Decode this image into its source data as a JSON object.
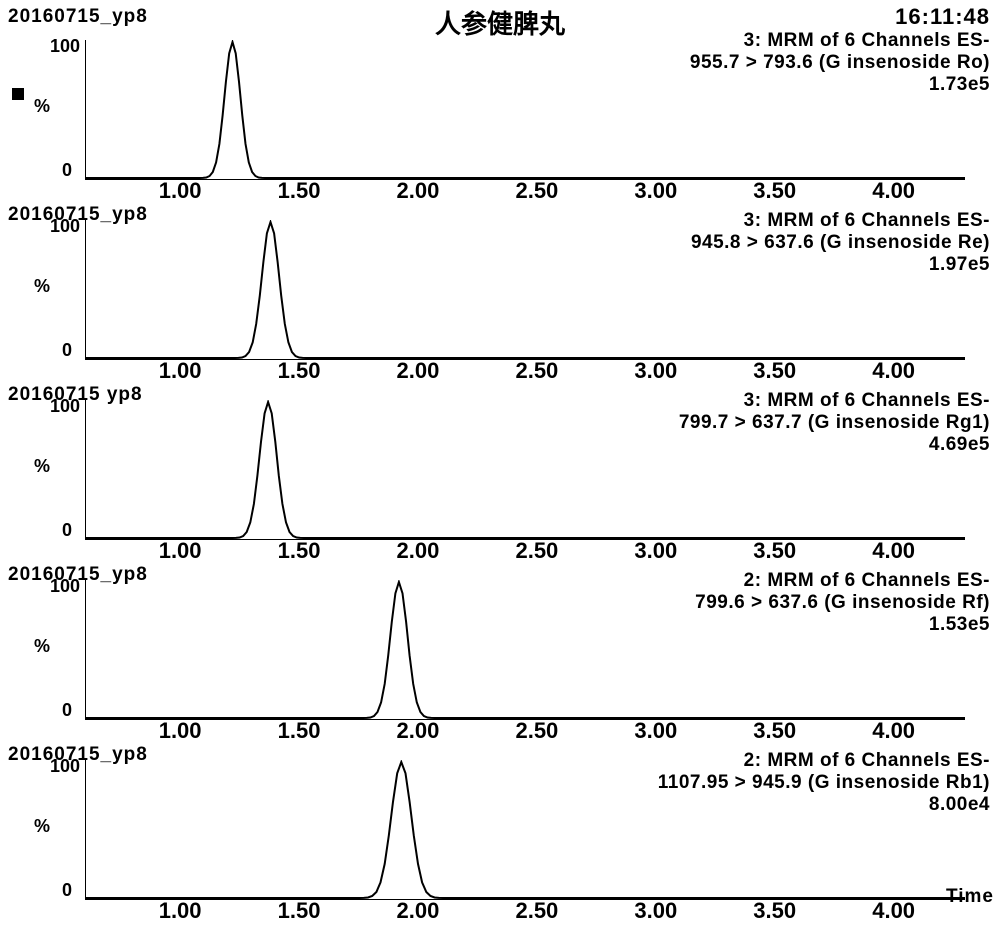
{
  "header": {
    "sample_id": "20160715_yp8",
    "cjk_title": "人参健脾丸",
    "timestamp": "16:11:48"
  },
  "global": {
    "background_color": "#ffffff",
    "line_color": "#000000",
    "font_family": "Arial",
    "axis_stroke_width": 2,
    "peak_stroke_width": 2
  },
  "x_axis": {
    "min": 0.6,
    "max": 4.3,
    "ticks": [
      1.0,
      1.5,
      2.0,
      2.5,
      3.0,
      3.5,
      4.0
    ],
    "tick_labels": [
      "1.00",
      "1.50",
      "2.00",
      "2.50",
      "3.00",
      "3.50",
      "4.00"
    ],
    "label": "Time"
  },
  "y_axis": {
    "min": 0,
    "max": 100,
    "ticks": [
      0,
      100
    ],
    "unit": "%"
  },
  "panels": [
    {
      "sample_id": "20160715_yp8",
      "show_sample_id": false,
      "show_legend_marker": true,
      "channel_line": "3: MRM of 6 Channels ES-",
      "transition_line": "955.7 > 793.6 (Ginsenoside Ro)",
      "intensity": "1.73e5",
      "peak_center": 1.22,
      "peak_halfwidth": 0.055
    },
    {
      "sample_id": "20160715_yp8",
      "show_sample_id": true,
      "sample_id_display": "20160715_yp8",
      "show_legend_marker": false,
      "channel_line": "3: MRM of 6 Channels ES-",
      "transition_line": "945.8 > 637.6 (Ginsenoside Re)",
      "intensity": "1.97e5",
      "peak_center": 1.38,
      "peak_halfwidth": 0.06
    },
    {
      "sample_id": "20160715 yp8",
      "show_sample_id": true,
      "sample_id_display": "20160715 yp8",
      "show_legend_marker": false,
      "channel_line": "3: MRM of 6 Channels ES-",
      "transition_line": "799.7 > 637.7 (Ginsenoside Rg1)",
      "intensity": "4.69e5",
      "peak_center": 1.37,
      "peak_halfwidth": 0.06
    },
    {
      "sample_id": "20160715_yp8",
      "show_sample_id": true,
      "sample_id_display": "20160715_yp8",
      "show_legend_marker": false,
      "channel_line": "2: MRM of 6 Channels ES-",
      "transition_line": "799.6 > 637.6 (Ginsenoside Rf)",
      "intensity": "1.53e5",
      "peak_center": 1.92,
      "peak_halfwidth": 0.06
    },
    {
      "sample_id": "20160715_yp8",
      "show_sample_id": true,
      "sample_id_display": "20160715_yp8",
      "show_legend_marker": false,
      "channel_line": "2: MRM of 6 Channels ES-",
      "transition_line": "1107.95 > 945.9 (Ginsenoside Rb1)",
      "intensity": "8.00e4",
      "peak_center": 1.93,
      "peak_halfwidth": 0.07,
      "show_time_label": true
    }
  ]
}
